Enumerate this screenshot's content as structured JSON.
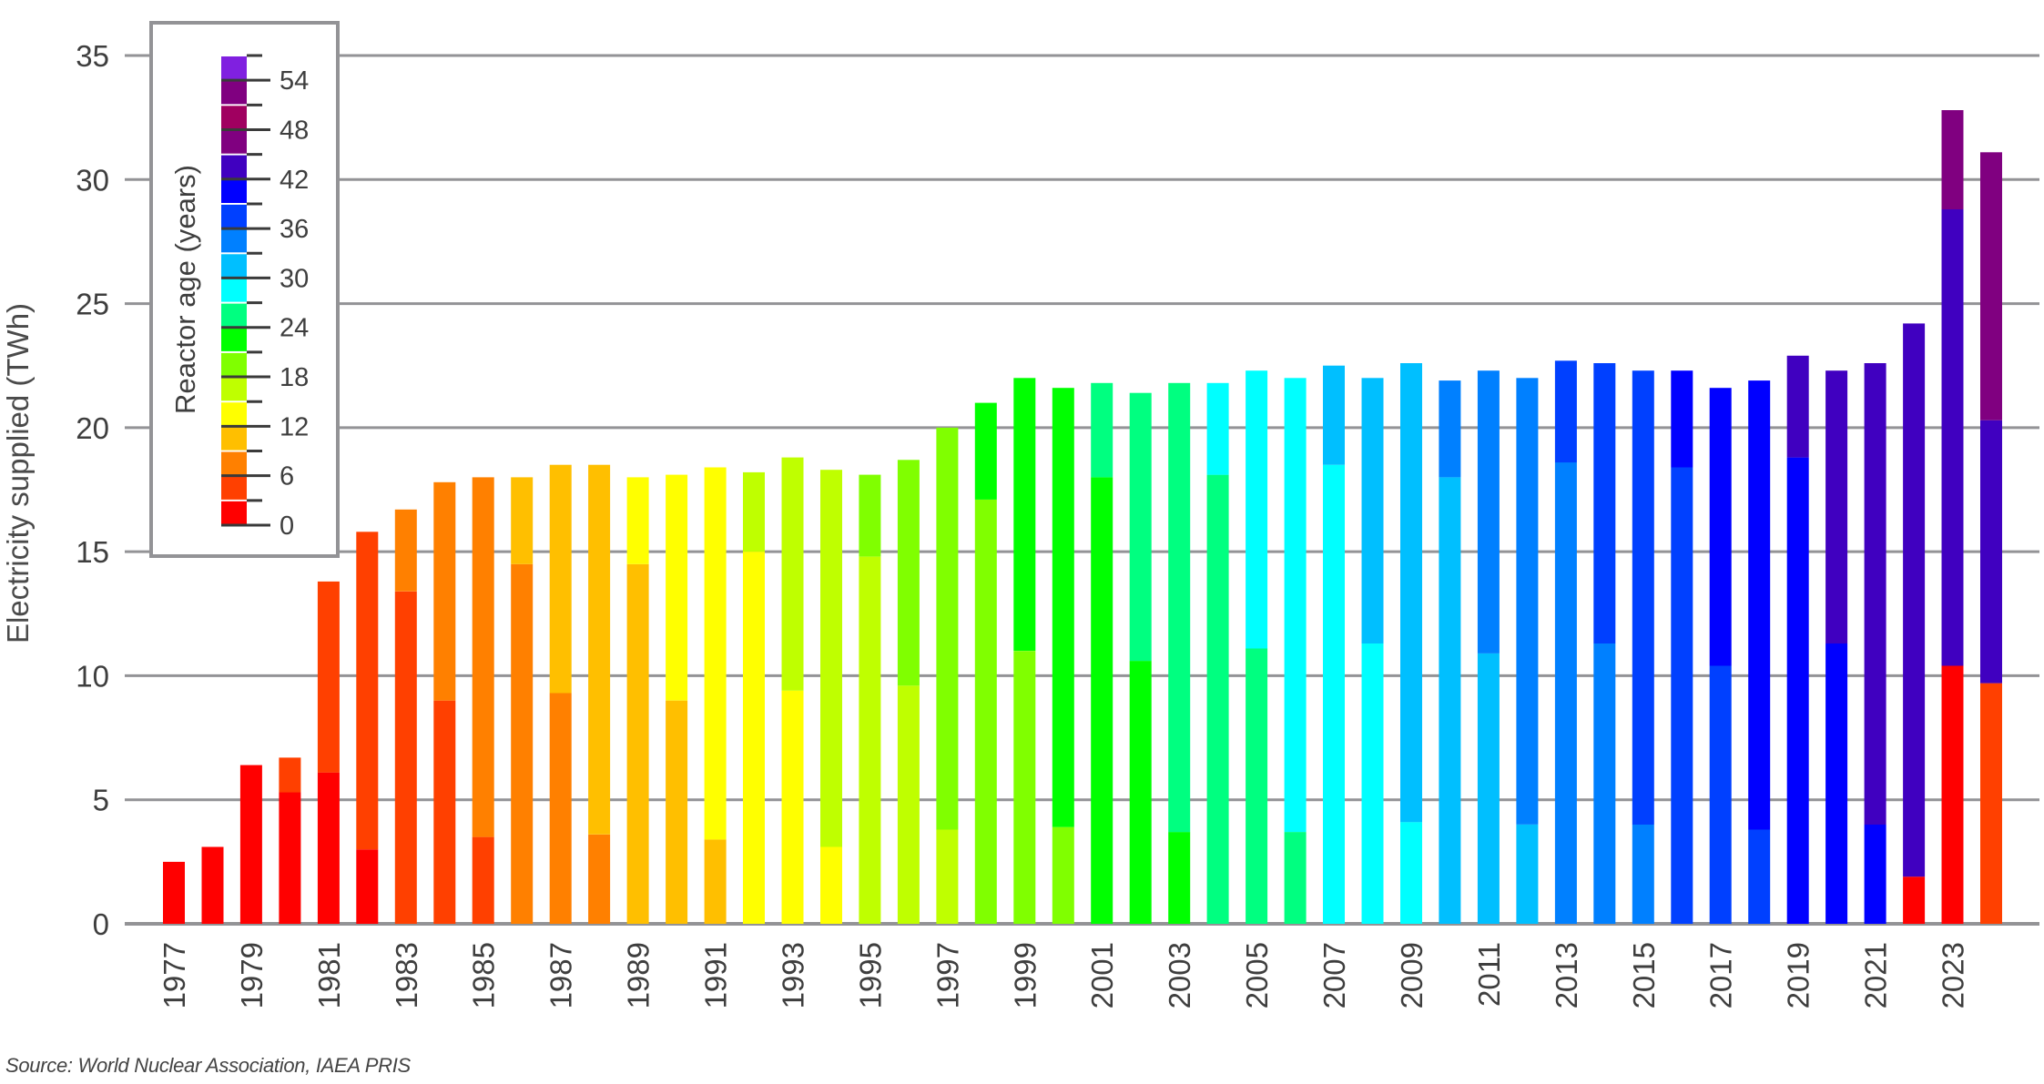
{
  "chart_data": {
    "type": "bar",
    "stacked": true,
    "title": "",
    "xlabel": "",
    "ylabel": "Electricity supplied (TWh)",
    "ylim": [
      0,
      35
    ],
    "yticks": [
      0,
      5,
      10,
      15,
      20,
      25,
      30,
      35
    ],
    "grid": true,
    "legend": {
      "type": "colorbar",
      "title": "Reactor age (years)",
      "position": "upper-left",
      "ticks": [
        0,
        6,
        12,
        18,
        24,
        30,
        36,
        42,
        48,
        54
      ],
      "bins": [
        {
          "from": 0,
          "to": 3,
          "color": "#ff0000"
        },
        {
          "from": 3,
          "to": 6,
          "color": "#ff4000"
        },
        {
          "from": 6,
          "to": 9,
          "color": "#ff8000"
        },
        {
          "from": 9,
          "to": 12,
          "color": "#ffbf00"
        },
        {
          "from": 12,
          "to": 15,
          "color": "#ffff00"
        },
        {
          "from": 15,
          "to": 18,
          "color": "#bfff00"
        },
        {
          "from": 18,
          "to": 21,
          "color": "#80ff00"
        },
        {
          "from": 21,
          "to": 24,
          "color": "#00ff00"
        },
        {
          "from": 24,
          "to": 27,
          "color": "#00ff80"
        },
        {
          "from": 27,
          "to": 30,
          "color": "#00ffff"
        },
        {
          "from": 30,
          "to": 33,
          "color": "#00bfff"
        },
        {
          "from": 33,
          "to": 36,
          "color": "#0080ff"
        },
        {
          "from": 36,
          "to": 39,
          "color": "#0040ff"
        },
        {
          "from": 39,
          "to": 42,
          "color": "#0000ff"
        },
        {
          "from": 42,
          "to": 45,
          "color": "#4000c0"
        },
        {
          "from": 45,
          "to": 48,
          "color": "#800080"
        },
        {
          "from": 48,
          "to": 51,
          "color": "#a00060"
        },
        {
          "from": 51,
          "to": 54,
          "color": "#800080"
        },
        {
          "from": 54,
          "to": 57,
          "color": "#8020e0"
        }
      ]
    },
    "categories": [
      "1977",
      "1978",
      "1979",
      "1980",
      "1981",
      "1982",
      "1983",
      "1984",
      "1985",
      "1986",
      "1987",
      "1988",
      "1989",
      "1990",
      "1991",
      "1992",
      "1993",
      "1994",
      "1995",
      "1996",
      "1997",
      "1998",
      "1999",
      "2000",
      "2001",
      "2002",
      "2003",
      "2004",
      "2005",
      "2006",
      "2007",
      "2008",
      "2009",
      "2010",
      "2011",
      "2012",
      "2013",
      "2014",
      "2015",
      "2016",
      "2017",
      "2018",
      "2019",
      "2020",
      "2021",
      "2022",
      "2023",
      "2024"
    ],
    "tick_labels_shown": [
      "1977",
      "1979",
      "1981",
      "1983",
      "1985",
      "1987",
      "1989",
      "1991",
      "1993",
      "1995",
      "1997",
      "1999",
      "2001",
      "2003",
      "2005",
      "2007",
      "2009",
      "2011",
      "2013",
      "2015",
      "2017",
      "2019",
      "2021",
      "2023"
    ],
    "bars": [
      {
        "year": "1977",
        "total": 2.5,
        "segments": [
          {
            "age_bin": "0-3",
            "color": "#ff0000",
            "value": 2.5
          }
        ]
      },
      {
        "year": "1978",
        "total": 3.1,
        "segments": [
          {
            "age_bin": "0-3",
            "color": "#ff0000",
            "value": 3.1
          }
        ]
      },
      {
        "year": "1979",
        "total": 6.4,
        "segments": [
          {
            "age_bin": "0-3",
            "color": "#ff0000",
            "value": 6.4
          }
        ]
      },
      {
        "year": "1980",
        "total": 6.7,
        "segments": [
          {
            "age_bin": "0-3",
            "color": "#ff0000",
            "value": 5.3
          },
          {
            "age_bin": "3-6",
            "color": "#ff4000",
            "value": 1.4
          }
        ]
      },
      {
        "year": "1981",
        "total": 13.8,
        "segments": [
          {
            "age_bin": "0-3",
            "color": "#ff0000",
            "value": 6.1
          },
          {
            "age_bin": "3-6",
            "color": "#ff4000",
            "value": 7.7
          }
        ]
      },
      {
        "year": "1982",
        "total": 15.8,
        "segments": [
          {
            "age_bin": "0-3",
            "color": "#ff0000",
            "value": 3.0
          },
          {
            "age_bin": "3-6",
            "color": "#ff4000",
            "value": 12.8
          }
        ]
      },
      {
        "year": "1983",
        "total": 16.7,
        "segments": [
          {
            "age_bin": "3-6",
            "color": "#ff4000",
            "value": 13.4
          },
          {
            "age_bin": "6-9",
            "color": "#ff8000",
            "value": 3.3
          }
        ]
      },
      {
        "year": "1984",
        "total": 17.8,
        "segments": [
          {
            "age_bin": "3-6",
            "color": "#ff4000",
            "value": 9.0
          },
          {
            "age_bin": "6-9",
            "color": "#ff8000",
            "value": 8.8
          }
        ]
      },
      {
        "year": "1985",
        "total": 18.0,
        "segments": [
          {
            "age_bin": "3-6",
            "color": "#ff4000",
            "value": 3.5
          },
          {
            "age_bin": "6-9",
            "color": "#ff8000",
            "value": 14.5
          }
        ]
      },
      {
        "year": "1986",
        "total": 18.0,
        "segments": [
          {
            "age_bin": "6-9",
            "color": "#ff8000",
            "value": 14.5
          },
          {
            "age_bin": "9-12",
            "color": "#ffbf00",
            "value": 3.5
          }
        ]
      },
      {
        "year": "1987",
        "total": 18.5,
        "segments": [
          {
            "age_bin": "6-9",
            "color": "#ff8000",
            "value": 9.3
          },
          {
            "age_bin": "9-12",
            "color": "#ffbf00",
            "value": 9.2
          }
        ]
      },
      {
        "year": "1988",
        "total": 18.5,
        "segments": [
          {
            "age_bin": "6-9",
            "color": "#ff8000",
            "value": 3.6
          },
          {
            "age_bin": "9-12",
            "color": "#ffbf00",
            "value": 14.9
          }
        ]
      },
      {
        "year": "1989",
        "total": 18.0,
        "segments": [
          {
            "age_bin": "9-12",
            "color": "#ffbf00",
            "value": 14.5
          },
          {
            "age_bin": "12-15",
            "color": "#ffff00",
            "value": 3.5
          }
        ]
      },
      {
        "year": "1990",
        "total": 18.1,
        "segments": [
          {
            "age_bin": "9-12",
            "color": "#ffbf00",
            "value": 9.0
          },
          {
            "age_bin": "12-15",
            "color": "#ffff00",
            "value": 9.1
          }
        ]
      },
      {
        "year": "1991",
        "total": 18.4,
        "segments": [
          {
            "age_bin": "9-12",
            "color": "#ffbf00",
            "value": 3.4
          },
          {
            "age_bin": "12-15",
            "color": "#ffff00",
            "value": 15.0
          }
        ]
      },
      {
        "year": "1992",
        "total": 18.2,
        "segments": [
          {
            "age_bin": "12-15",
            "color": "#ffff00",
            "value": 15.0
          },
          {
            "age_bin": "15-18",
            "color": "#bfff00",
            "value": 3.2
          }
        ]
      },
      {
        "year": "1993",
        "total": 18.8,
        "segments": [
          {
            "age_bin": "12-15",
            "color": "#ffff00",
            "value": 9.4
          },
          {
            "age_bin": "15-18",
            "color": "#bfff00",
            "value": 9.4
          }
        ]
      },
      {
        "year": "1994",
        "total": 18.3,
        "segments": [
          {
            "age_bin": "12-15",
            "color": "#ffff00",
            "value": 3.1
          },
          {
            "age_bin": "15-18",
            "color": "#bfff00",
            "value": 15.2
          }
        ]
      },
      {
        "year": "1995",
        "total": 18.1,
        "segments": [
          {
            "age_bin": "15-18",
            "color": "#bfff00",
            "value": 14.8
          },
          {
            "age_bin": "18-21",
            "color": "#80ff00",
            "value": 3.3
          }
        ]
      },
      {
        "year": "1996",
        "total": 18.7,
        "segments": [
          {
            "age_bin": "15-18",
            "color": "#bfff00",
            "value": 9.6
          },
          {
            "age_bin": "18-21",
            "color": "#80ff00",
            "value": 9.1
          }
        ]
      },
      {
        "year": "1997",
        "total": 20.0,
        "segments": [
          {
            "age_bin": "15-18",
            "color": "#bfff00",
            "value": 3.8
          },
          {
            "age_bin": "18-21",
            "color": "#80ff00",
            "value": 16.2
          }
        ]
      },
      {
        "year": "1998",
        "total": 21.0,
        "segments": [
          {
            "age_bin": "18-21",
            "color": "#80ff00",
            "value": 17.1
          },
          {
            "age_bin": "21-24",
            "color": "#00ff00",
            "value": 3.9
          }
        ]
      },
      {
        "year": "1999",
        "total": 22.0,
        "segments": [
          {
            "age_bin": "18-21",
            "color": "#80ff00",
            "value": 11.0
          },
          {
            "age_bin": "21-24",
            "color": "#00ff00",
            "value": 11.0
          }
        ]
      },
      {
        "year": "2000",
        "total": 21.6,
        "segments": [
          {
            "age_bin": "18-21",
            "color": "#80ff00",
            "value": 3.9
          },
          {
            "age_bin": "21-24",
            "color": "#00ff00",
            "value": 17.7
          }
        ]
      },
      {
        "year": "2001",
        "total": 21.8,
        "segments": [
          {
            "age_bin": "21-24",
            "color": "#00ff00",
            "value": 18.0
          },
          {
            "age_bin": "24-27",
            "color": "#00ff80",
            "value": 3.8
          }
        ]
      },
      {
        "year": "2002",
        "total": 21.4,
        "segments": [
          {
            "age_bin": "21-24",
            "color": "#00ff00",
            "value": 10.6
          },
          {
            "age_bin": "24-27",
            "color": "#00ff80",
            "value": 10.8
          }
        ]
      },
      {
        "year": "2003",
        "total": 21.8,
        "segments": [
          {
            "age_bin": "21-24",
            "color": "#00ff00",
            "value": 3.7
          },
          {
            "age_bin": "24-27",
            "color": "#00ff80",
            "value": 18.1
          }
        ]
      },
      {
        "year": "2004",
        "total": 21.8,
        "segments": [
          {
            "age_bin": "24-27",
            "color": "#00ff80",
            "value": 18.1
          },
          {
            "age_bin": "27-30",
            "color": "#00ffff",
            "value": 3.7
          }
        ]
      },
      {
        "year": "2005",
        "total": 22.3,
        "segments": [
          {
            "age_bin": "24-27",
            "color": "#00ff80",
            "value": 11.1
          },
          {
            "age_bin": "27-30",
            "color": "#00ffff",
            "value": 11.2
          }
        ]
      },
      {
        "year": "2006",
        "total": 22.0,
        "segments": [
          {
            "age_bin": "24-27",
            "color": "#00ff80",
            "value": 3.7
          },
          {
            "age_bin": "27-30",
            "color": "#00ffff",
            "value": 18.3
          }
        ]
      },
      {
        "year": "2007",
        "total": 22.5,
        "segments": [
          {
            "age_bin": "27-30",
            "color": "#00ffff",
            "value": 18.5
          },
          {
            "age_bin": "30-33",
            "color": "#00bfff",
            "value": 4.0
          }
        ]
      },
      {
        "year": "2008",
        "total": 22.0,
        "segments": [
          {
            "age_bin": "27-30",
            "color": "#00ffff",
            "value": 11.3
          },
          {
            "age_bin": "30-33",
            "color": "#00bfff",
            "value": 10.7
          }
        ]
      },
      {
        "year": "2009",
        "total": 22.6,
        "segments": [
          {
            "age_bin": "27-30",
            "color": "#00ffff",
            "value": 4.1
          },
          {
            "age_bin": "30-33",
            "color": "#00bfff",
            "value": 18.5
          }
        ]
      },
      {
        "year": "2010",
        "total": 21.9,
        "segments": [
          {
            "age_bin": "30-33",
            "color": "#00bfff",
            "value": 18.0
          },
          {
            "age_bin": "33-36",
            "color": "#0080ff",
            "value": 3.9
          }
        ]
      },
      {
        "year": "2011",
        "total": 22.3,
        "segments": [
          {
            "age_bin": "30-33",
            "color": "#00bfff",
            "value": 10.9
          },
          {
            "age_bin": "33-36",
            "color": "#0080ff",
            "value": 11.4
          }
        ]
      },
      {
        "year": "2012",
        "total": 22.0,
        "segments": [
          {
            "age_bin": "30-33",
            "color": "#00bfff",
            "value": 4.0
          },
          {
            "age_bin": "33-36",
            "color": "#0080ff",
            "value": 18.0
          }
        ]
      },
      {
        "year": "2013",
        "total": 22.7,
        "segments": [
          {
            "age_bin": "33-36",
            "color": "#0080ff",
            "value": 18.6
          },
          {
            "age_bin": "36-39",
            "color": "#0040ff",
            "value": 4.1
          }
        ]
      },
      {
        "year": "2014",
        "total": 22.6,
        "segments": [
          {
            "age_bin": "33-36",
            "color": "#0080ff",
            "value": 11.3
          },
          {
            "age_bin": "36-39",
            "color": "#0040ff",
            "value": 11.3
          }
        ]
      },
      {
        "year": "2015",
        "total": 22.3,
        "segments": [
          {
            "age_bin": "33-36",
            "color": "#0080ff",
            "value": 4.0
          },
          {
            "age_bin": "36-39",
            "color": "#0040ff",
            "value": 18.3
          }
        ]
      },
      {
        "year": "2016",
        "total": 22.3,
        "segments": [
          {
            "age_bin": "36-39",
            "color": "#0040ff",
            "value": 18.4
          },
          {
            "age_bin": "39-42",
            "color": "#0000ff",
            "value": 3.9
          }
        ]
      },
      {
        "year": "2017",
        "total": 21.6,
        "segments": [
          {
            "age_bin": "36-39",
            "color": "#0040ff",
            "value": 10.4
          },
          {
            "age_bin": "39-42",
            "color": "#0000ff",
            "value": 11.2
          }
        ]
      },
      {
        "year": "2018",
        "total": 21.9,
        "segments": [
          {
            "age_bin": "36-39",
            "color": "#0040ff",
            "value": 3.8
          },
          {
            "age_bin": "39-42",
            "color": "#0000ff",
            "value": 18.1
          }
        ]
      },
      {
        "year": "2019",
        "total": 22.9,
        "segments": [
          {
            "age_bin": "39-42",
            "color": "#0000ff",
            "value": 18.8
          },
          {
            "age_bin": "42-45",
            "color": "#4000c0",
            "value": 4.1
          }
        ]
      },
      {
        "year": "2020",
        "total": 22.3,
        "segments": [
          {
            "age_bin": "39-42",
            "color": "#0000ff",
            "value": 11.3
          },
          {
            "age_bin": "42-45",
            "color": "#4000c0",
            "value": 11.0
          }
        ]
      },
      {
        "year": "2021",
        "total": 22.6,
        "segments": [
          {
            "age_bin": "39-42",
            "color": "#0000ff",
            "value": 4.0
          },
          {
            "age_bin": "42-45",
            "color": "#4000c0",
            "value": 18.6
          }
        ]
      },
      {
        "year": "2022",
        "total": 24.2,
        "segments": [
          {
            "age_bin": "0-3",
            "color": "#ff0000",
            "value": 1.9
          },
          {
            "age_bin": "42-45",
            "color": "#4000c0",
            "value": 22.3
          }
        ]
      },
      {
        "year": "2023",
        "total": 32.8,
        "segments": [
          {
            "age_bin": "0-3",
            "color": "#ff0000",
            "value": 10.4
          },
          {
            "age_bin": "42-45",
            "color": "#4000c0",
            "value": 18.4
          },
          {
            "age_bin": "45-48",
            "color": "#800080",
            "value": 4.0
          }
        ]
      },
      {
        "year": "2024",
        "total": 31.1,
        "segments": [
          {
            "age_bin": "3-6",
            "color": "#ff4000",
            "value": 9.7
          },
          {
            "age_bin": "42-45",
            "color": "#4000c0",
            "value": 10.6
          },
          {
            "age_bin": "45-48",
            "color": "#800080",
            "value": 10.8
          }
        ]
      }
    ],
    "source": "Source: World Nuclear Association, IAEA PRIS"
  },
  "style": {
    "grid_color": "#939396",
    "axis_text_color": "#3e3e3e",
    "legend_border_color": "#939396"
  }
}
